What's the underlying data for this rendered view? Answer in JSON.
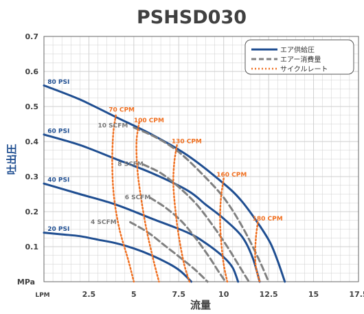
{
  "chart_data": {
    "type": "line",
    "title": "PSHSD030",
    "xlabel": "流量",
    "ylabel": "吐出圧",
    "x_unit_label": "LPM",
    "y_unit_label": "MPa",
    "xlim": [
      0,
      17.5
    ],
    "ylim": [
      0,
      0.7
    ],
    "x_ticks": [
      "2.5",
      "5",
      "7.5",
      "10",
      "12.5",
      "15",
      "17.5"
    ],
    "y_ticks": [
      "0.1",
      "0.2",
      "0.3",
      "0.4",
      "0.5",
      "0.6",
      "0.7"
    ],
    "grid": true,
    "legend_position": "top-right",
    "legend": [
      {
        "label": "エア供給圧",
        "style": "solid",
        "color": "#1f4e91"
      },
      {
        "label": "エアー消費量",
        "style": "dashed",
        "color": "#808080"
      },
      {
        "label": "サイクルレート",
        "style": "dotted",
        "color": "#f07021"
      }
    ],
    "series": [
      {
        "name": "80 PSI",
        "group": "air_pressure",
        "label_at": [
          0.2,
          0.565
        ],
        "x": [
          0,
          2,
          4,
          6,
          8,
          10,
          11,
          12,
          12.6,
          13,
          13.4
        ],
        "y": [
          0.56,
          0.52,
          0.47,
          0.42,
          0.36,
          0.28,
          0.23,
          0.16,
          0.11,
          0.06,
          0
        ]
      },
      {
        "name": "60 PSI",
        "group": "air_pressure",
        "label_at": [
          0.2,
          0.425
        ],
        "x": [
          0,
          2,
          4,
          6,
          8,
          9,
          10,
          11,
          11.6,
          12
        ],
        "y": [
          0.42,
          0.39,
          0.35,
          0.31,
          0.26,
          0.22,
          0.18,
          0.13,
          0.07,
          0
        ]
      },
      {
        "name": "40 PSI",
        "group": "air_pressure",
        "label_at": [
          0.2,
          0.285
        ],
        "x": [
          0,
          2,
          4,
          6,
          8,
          9,
          10,
          10.5,
          10.8
        ],
        "y": [
          0.28,
          0.25,
          0.22,
          0.18,
          0.14,
          0.11,
          0.07,
          0.04,
          0
        ]
      },
      {
        "name": "20 PSI",
        "group": "air_pressure",
        "label_at": [
          0.2,
          0.145
        ],
        "x": [
          0,
          1,
          2,
          3,
          4,
          5,
          6,
          7,
          7.6,
          8.2
        ],
        "y": [
          0.14,
          0.135,
          0.13,
          0.12,
          0.11,
          0.095,
          0.075,
          0.05,
          0.03,
          0
        ]
      },
      {
        "name": "10 SCFM",
        "group": "air_consumption",
        "label_at": [
          3.0,
          0.44
        ],
        "x": [
          5,
          6.3,
          7.5,
          8.75,
          10,
          11,
          11.9,
          12.5
        ],
        "y": [
          0.44,
          0.41,
          0.37,
          0.31,
          0.24,
          0.16,
          0.07,
          0
        ]
      },
      {
        "name": "8 SCFM",
        "group": "air_consumption",
        "label_at": [
          4.1,
          0.33
        ],
        "x": [
          5.5,
          6.5,
          7.5,
          8.5,
          9.4,
          10.2,
          10.8,
          11.4
        ],
        "y": [
          0.335,
          0.31,
          0.27,
          0.22,
          0.16,
          0.1,
          0.05,
          0
        ]
      },
      {
        "name": "6 SCFM",
        "group": "air_consumption",
        "label_at": [
          4.5,
          0.235
        ],
        "x": [
          5.9,
          6.8,
          7.7,
          8.5,
          9.2,
          9.7,
          10.1
        ],
        "y": [
          0.24,
          0.21,
          0.17,
          0.12,
          0.07,
          0.03,
          0
        ]
      },
      {
        "name": "4 SCFM",
        "group": "air_consumption",
        "label_at": [
          2.6,
          0.165
        ],
        "x": [
          4.8,
          5.8,
          6.8,
          7.8,
          8.5,
          9.1
        ],
        "y": [
          0.17,
          0.14,
          0.1,
          0.06,
          0.03,
          0
        ]
      },
      {
        "name": "70 CPM",
        "group": "cycle_rate",
        "label_at": [
          3.6,
          0.485
        ],
        "x": [
          4.0,
          3.85,
          3.8,
          3.9,
          4.2,
          4.7,
          5.0
        ],
        "y": [
          0.475,
          0.42,
          0.33,
          0.24,
          0.15,
          0.06,
          0
        ]
      },
      {
        "name": "100 CPM",
        "group": "cycle_rate",
        "label_at": [
          5.0,
          0.455
        ],
        "x": [
          5.3,
          5.15,
          5.2,
          5.4,
          5.7,
          6.1,
          6.4
        ],
        "y": [
          0.455,
          0.4,
          0.32,
          0.24,
          0.15,
          0.06,
          0
        ]
      },
      {
        "name": "130 CPM",
        "group": "cycle_rate",
        "label_at": [
          7.1,
          0.395
        ],
        "x": [
          7.4,
          7.25,
          7.2,
          7.3,
          7.5,
          7.8,
          8.1
        ],
        "y": [
          0.39,
          0.34,
          0.28,
          0.21,
          0.13,
          0.05,
          0
        ]
      },
      {
        "name": "160 CPM",
        "group": "cycle_rate",
        "label_at": [
          9.6,
          0.3
        ],
        "x": [
          10.0,
          9.85,
          9.8,
          9.85,
          10.0,
          10.2
        ],
        "y": [
          0.295,
          0.24,
          0.18,
          0.12,
          0.05,
          0
        ]
      },
      {
        "name": "180 CPM",
        "group": "cycle_rate",
        "label_at": [
          11.6,
          0.175
        ],
        "x": [
          11.9,
          11.8,
          11.75,
          11.8,
          12.0
        ],
        "y": [
          0.17,
          0.13,
          0.08,
          0.04,
          0
        ]
      }
    ],
    "colors": {
      "air_pressure": "#1f4e91",
      "air_consumption": "#808080",
      "cycle_rate": "#f07021",
      "grid": "#cfcfcf",
      "text": "#404040"
    }
  }
}
